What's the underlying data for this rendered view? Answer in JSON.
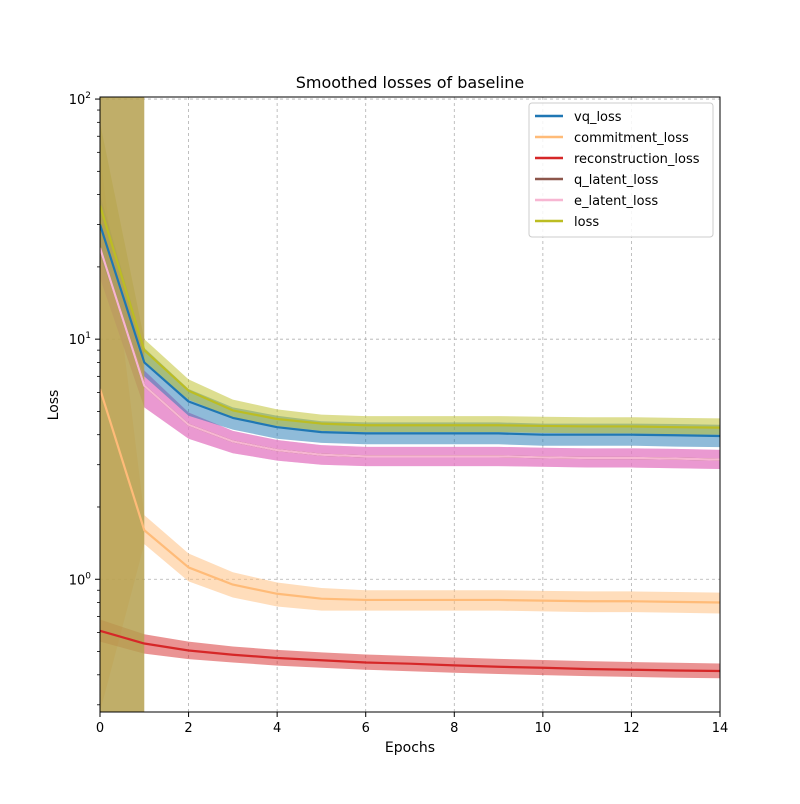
{
  "chart_data": {
    "type": "line",
    "title": "Smoothed losses of baseline",
    "xlabel": "Epochs",
    "ylabel": "Loss",
    "yscale": "log",
    "xlim": [
      0,
      14
    ],
    "ylim": [
      0.28,
      102
    ],
    "x_ticks": [
      0,
      2,
      4,
      6,
      8,
      10,
      12,
      14
    ],
    "x_tick_labels": [
      "0",
      "2",
      "4",
      "6",
      "8",
      "10",
      "12",
      "14"
    ],
    "y_ticks": [
      1,
      10,
      100
    ],
    "y_tick_labels": [
      {
        "base": "10",
        "exp": "0"
      },
      {
        "base": "10",
        "exp": "1"
      },
      {
        "base": "10",
        "exp": "2"
      }
    ],
    "grid": true,
    "legend_position": "top-right",
    "x": [
      0,
      1,
      2,
      3,
      4,
      5,
      6,
      7,
      8,
      9,
      10,
      11,
      12,
      13,
      14
    ],
    "series": [
      {
        "name": "vq_loss",
        "color": "#1f77b4",
        "values": [
          30,
          8,
          5.5,
          4.7,
          4.3,
          4.1,
          4.05,
          4.05,
          4.05,
          4.05,
          4.0,
          4.0,
          4.0,
          3.98,
          3.95
        ],
        "lower": [
          22,
          7.0,
          4.8,
          4.2,
          3.85,
          3.7,
          3.65,
          3.65,
          3.65,
          3.65,
          3.6,
          3.6,
          3.6,
          3.57,
          3.55
        ],
        "upper": [
          40,
          9.2,
          6.2,
          5.2,
          4.8,
          4.55,
          4.5,
          4.5,
          4.5,
          4.5,
          4.45,
          4.45,
          4.45,
          4.43,
          4.4
        ]
      },
      {
        "name": "commitment_loss",
        "color": "#ffbb78",
        "band_color": "#ffbb78",
        "values": [
          6.2,
          1.6,
          1.12,
          0.95,
          0.87,
          0.83,
          0.82,
          0.82,
          0.82,
          0.82,
          0.815,
          0.81,
          0.81,
          0.805,
          0.8
        ],
        "lower": [
          0.28,
          1.4,
          0.98,
          0.84,
          0.77,
          0.74,
          0.74,
          0.74,
          0.74,
          0.74,
          0.735,
          0.73,
          0.73,
          0.725,
          0.72
        ],
        "upper": [
          60,
          1.85,
          1.28,
          1.07,
          0.97,
          0.92,
          0.9,
          0.9,
          0.9,
          0.9,
          0.895,
          0.89,
          0.89,
          0.885,
          0.88
        ]
      },
      {
        "name": "reconstruction_loss",
        "color": "#d62728",
        "values": [
          0.61,
          0.54,
          0.505,
          0.485,
          0.47,
          0.46,
          0.45,
          0.445,
          0.438,
          0.432,
          0.428,
          0.423,
          0.42,
          0.417,
          0.415
        ],
        "lower": [
          0.55,
          0.49,
          0.465,
          0.45,
          0.437,
          0.428,
          0.42,
          0.414,
          0.408,
          0.403,
          0.399,
          0.395,
          0.392,
          0.389,
          0.387
        ],
        "upper": [
          0.68,
          0.59,
          0.55,
          0.525,
          0.508,
          0.496,
          0.486,
          0.479,
          0.472,
          0.466,
          0.461,
          0.456,
          0.452,
          0.449,
          0.446
        ]
      },
      {
        "name": "q_latent_loss",
        "color": "#8c564b",
        "values": [
          24,
          6.4,
          4.4,
          3.75,
          3.45,
          3.3,
          3.25,
          3.25,
          3.25,
          3.25,
          3.22,
          3.2,
          3.2,
          3.18,
          3.15
        ],
        "lower": [
          18,
          5.2,
          3.85,
          3.35,
          3.12,
          3.0,
          2.96,
          2.96,
          2.96,
          2.96,
          2.94,
          2.92,
          2.92,
          2.9,
          2.88
        ],
        "upper": [
          32,
          7.4,
          4.95,
          4.15,
          3.8,
          3.62,
          3.56,
          3.56,
          3.56,
          3.56,
          3.53,
          3.51,
          3.51,
          3.49,
          3.46
        ],
        "band_color": "#e377c2"
      },
      {
        "name": "e_latent_loss",
        "color": "#f7b6d2",
        "values": [
          24,
          6.4,
          4.4,
          3.75,
          3.45,
          3.3,
          3.25,
          3.25,
          3.25,
          3.25,
          3.22,
          3.2,
          3.2,
          3.18,
          3.15
        ],
        "lower": [
          18,
          5.2,
          3.85,
          3.35,
          3.12,
          3.0,
          2.96,
          2.96,
          2.96,
          2.96,
          2.94,
          2.92,
          2.92,
          2.9,
          2.88
        ],
        "upper": [
          32,
          7.4,
          4.95,
          4.15,
          3.8,
          3.62,
          3.56,
          3.56,
          3.56,
          3.56,
          3.53,
          3.51,
          3.51,
          3.49,
          3.46
        ],
        "band_color": "#e377c2"
      },
      {
        "name": "loss",
        "color": "#bcbd22",
        "values": [
          36,
          9,
          6.1,
          5.05,
          4.65,
          4.45,
          4.38,
          4.38,
          4.38,
          4.38,
          4.35,
          4.33,
          4.33,
          4.3,
          4.28
        ],
        "lower": [
          28,
          8,
          5.6,
          4.7,
          4.35,
          4.15,
          4.1,
          4.1,
          4.1,
          4.1,
          4.07,
          4.05,
          4.05,
          4.02,
          4.0
        ],
        "upper": [
          80,
          10,
          6.8,
          5.6,
          5.1,
          4.85,
          4.78,
          4.78,
          4.78,
          4.78,
          4.75,
          4.73,
          4.73,
          4.7,
          4.68
        ]
      }
    ]
  }
}
